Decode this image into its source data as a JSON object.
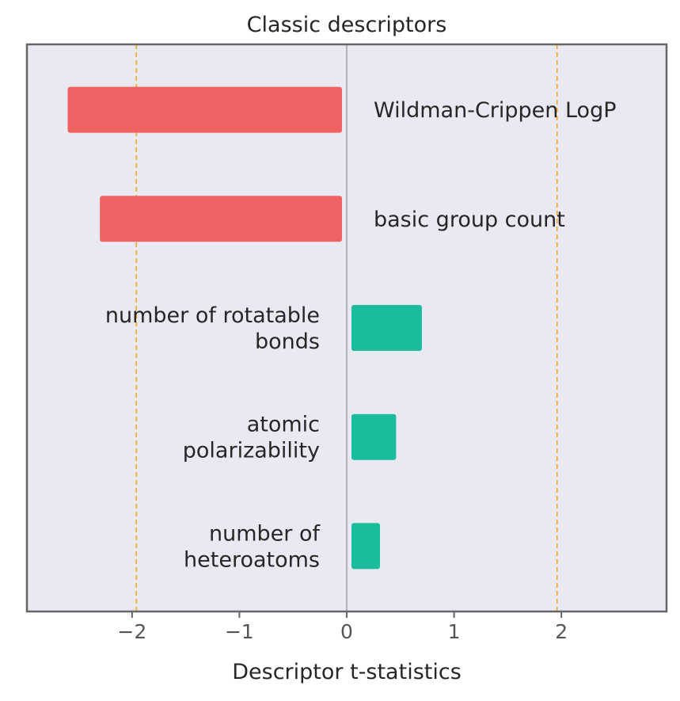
{
  "chart_data": {
    "type": "bar",
    "orientation": "horizontal",
    "title": "Classic descriptors",
    "xlabel": "Descriptor t-statistics",
    "ylabel": "",
    "xlim": [
      -2.98,
      2.98
    ],
    "xticks": [
      -2,
      -1,
      0,
      1,
      2
    ],
    "xtick_labels": [
      "−2",
      "−1",
      "0",
      "1",
      "2"
    ],
    "grid": false,
    "reference_lines": [
      {
        "value": -1.96,
        "style": "dashed",
        "color": "#f5a623"
      },
      {
        "value": 1.96,
        "style": "dashed",
        "color": "#f5a623"
      }
    ],
    "zero_line": {
      "value": 0,
      "color": "#999999"
    },
    "categories": [
      "Wildman-Crippen LogP",
      "basic group count",
      "number of rotatable bonds",
      "atomic polarizability",
      "number of heteroatoms"
    ],
    "category_label_lines": [
      [
        "Wildman-Crippen LogP"
      ],
      [
        "basic group count"
      ],
      [
        "number of rotatable",
        "bonds"
      ],
      [
        "atomic",
        "polarizability"
      ],
      [
        "number of",
        "heteroatoms"
      ]
    ],
    "values": [
      -2.6,
      -2.3,
      0.7,
      0.46,
      0.31
    ],
    "colors": {
      "negative": "#f06161",
      "positive": "#1abc9c",
      "plot_background": "#e9e9f1",
      "frame": "#666666",
      "text": "#262626",
      "tick_text": "#555555"
    }
  }
}
